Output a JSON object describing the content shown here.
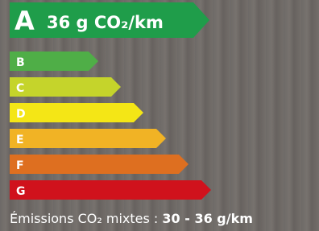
{
  "header": {
    "class": "A",
    "value": "36 g CO₂/km",
    "color": "#1f9d4a"
  },
  "classes": [
    {
      "label": "B",
      "color": "#4fae47"
    },
    {
      "label": "C",
      "color": "#c5d42b"
    },
    {
      "label": "D",
      "color": "#f4e616"
    },
    {
      "label": "E",
      "color": "#f1b325"
    },
    {
      "label": "F",
      "color": "#de6f20"
    },
    {
      "label": "G",
      "color": "#d0121c"
    }
  ],
  "footer": {
    "label": "Émissions CO₂ mixtes :",
    "value": "30 - 36 g/km"
  }
}
